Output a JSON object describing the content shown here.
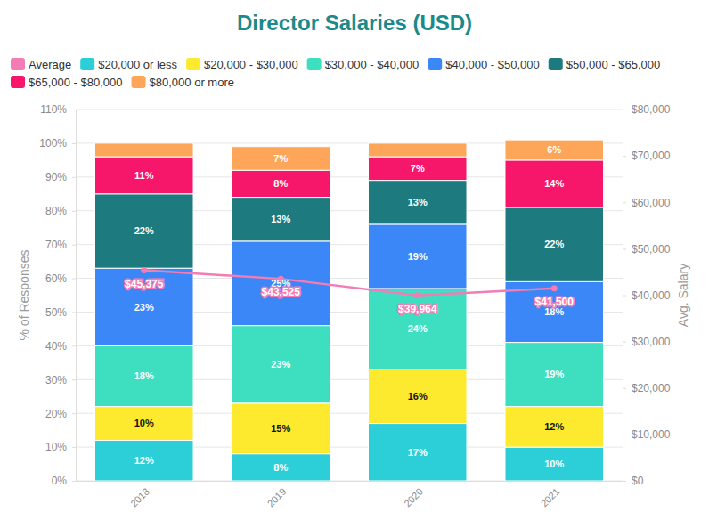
{
  "chart_data": {
    "type": "bar",
    "title": "Director Salaries (USD)",
    "categories": [
      "2018",
      "2019",
      "2020",
      "2021"
    ],
    "ylabel": "% of Responses",
    "y2label": "Avg. Salary",
    "ylim": [
      0,
      110
    ],
    "yticks": [
      {
        "value": 0,
        "label": "0%"
      },
      {
        "value": 10,
        "label": "10%"
      },
      {
        "value": 20,
        "label": "20%"
      },
      {
        "value": 30,
        "label": "30%"
      },
      {
        "value": 40,
        "label": "40%"
      },
      {
        "value": 50,
        "label": "50%"
      },
      {
        "value": 60,
        "label": "60%"
      },
      {
        "value": 70,
        "label": "70%"
      },
      {
        "value": 80,
        "label": "80%"
      },
      {
        "value": 90,
        "label": "90%"
      },
      {
        "value": 100,
        "label": "100%"
      },
      {
        "value": 110,
        "label": "110%"
      }
    ],
    "y2lim": [
      0,
      80000
    ],
    "y2ticks": [
      {
        "value": 0,
        "label": "$0"
      },
      {
        "value": 10000,
        "label": "$10,000"
      },
      {
        "value": 20000,
        "label": "$20,000"
      },
      {
        "value": 30000,
        "label": "$30,000"
      },
      {
        "value": 40000,
        "label": "$40,000"
      },
      {
        "value": 50000,
        "label": "$50,000"
      },
      {
        "value": 60000,
        "label": "$60,000"
      },
      {
        "value": 70000,
        "label": "$70,000"
      },
      {
        "value": 80000,
        "label": "$80,000"
      }
    ],
    "stacked": true,
    "grid": true,
    "legend": "top",
    "data_labels": true,
    "series": [
      {
        "name": "Average",
        "type": "line",
        "axis": "y2",
        "marker": "circle",
        "color": "#f47cb4",
        "values": [
          45375,
          43525,
          39964,
          41500
        ],
        "value_labels": [
          "$45,375",
          "$43,525",
          "$39,964",
          "$41,500"
        ]
      },
      {
        "name": "$20,000 or less",
        "type": "bar",
        "color": "#2ccfd8",
        "values": [
          12,
          8,
          17,
          10
        ],
        "value_labels": [
          "12%",
          "8%",
          "17%",
          "10%"
        ]
      },
      {
        "name": "$20,000 - $30,000",
        "type": "bar",
        "color": "#fde92e",
        "values": [
          10,
          15,
          16,
          12
        ],
        "value_labels": [
          "10%",
          "15%",
          "16%",
          "12%"
        ]
      },
      {
        "name": "$30,000 - $40,000",
        "type": "bar",
        "color": "#3ddfc0",
        "values": [
          18,
          23,
          24,
          19
        ],
        "value_labels": [
          "18%",
          "23%",
          "24%",
          "19%"
        ]
      },
      {
        "name": "$40,000 - $50,000",
        "type": "bar",
        "color": "#3b87f7",
        "values": [
          23,
          25,
          19,
          18
        ],
        "value_labels": [
          "23%",
          "25%",
          "19%",
          "18%"
        ]
      },
      {
        "name": "$50,000 - $65,000",
        "type": "bar",
        "color": "#1d7a7e",
        "values": [
          22,
          13,
          13,
          22
        ],
        "value_labels": [
          "22%",
          "13%",
          "13%",
          "22%"
        ]
      },
      {
        "name": "$65,000 - $80,000",
        "type": "bar",
        "color": "#f7176a",
        "values": [
          11,
          8,
          7,
          14
        ],
        "value_labels": [
          "11%",
          "8%",
          "7%",
          "14%"
        ]
      },
      {
        "name": "$80,000 or more",
        "type": "bar",
        "color": "#fda65a",
        "values": [
          4,
          7,
          4,
          6
        ],
        "value_labels": [
          null,
          "7%",
          null,
          "6%"
        ]
      }
    ]
  }
}
